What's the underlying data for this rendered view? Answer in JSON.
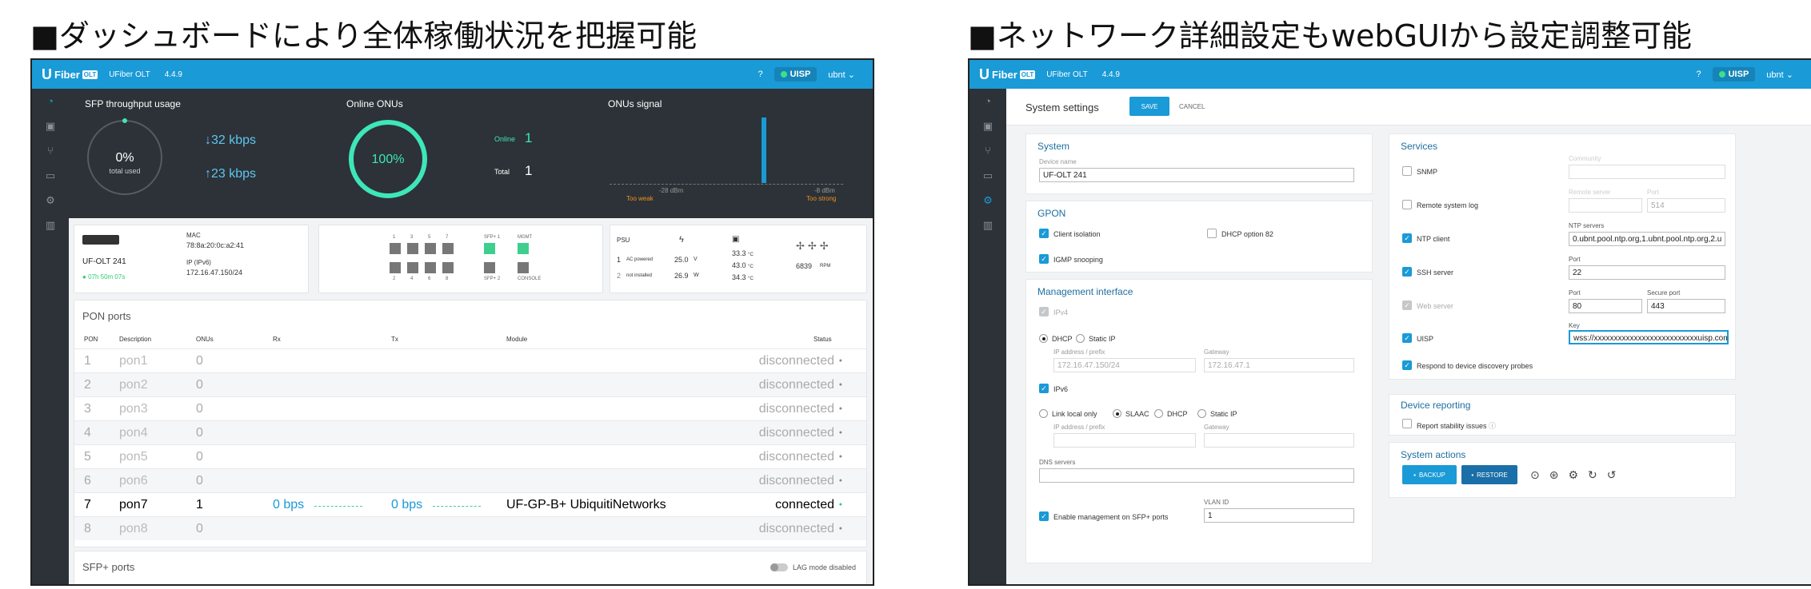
{
  "headings": {
    "left": "■ダッシュボードにより全体稼働状況を把握可能",
    "right": "■ネットワーク詳細設定もwebGUIから設定調整可能"
  },
  "topbar": {
    "brand": "Fiber",
    "brand_badge": "OLT",
    "product": "UFiber OLT",
    "version": "4.4.9",
    "help": "?",
    "uisp": "UISP",
    "user": "ubnt"
  },
  "dashboard": {
    "sfp_title": "SFP throughput usage",
    "sfp_percent": "0%",
    "sfp_percent_label": "total used",
    "down_rate": "↓32 kbps",
    "up_rate": "↑23 kbps",
    "onus_title": "Online ONUs",
    "onus_percent": "100%",
    "online_label": "Online",
    "online_value": "1",
    "total_label": "Total",
    "total_value": "1",
    "signal_title": "ONUs signal",
    "signal_low_db": "-28 dBm",
    "signal_low_label": "Too weak",
    "signal_high_db": "-8 dBm",
    "signal_high_label": "Too strong",
    "signal_fill": 0.35
  },
  "device": {
    "name": "UF-OLT 241",
    "uptime": "07h 50m 07s",
    "mac_label": "MAC",
    "mac": "78:8a:20:0c:a2:41",
    "ip_label": "IP (IPv6)",
    "ip": "172.16.47.150/24",
    "ports_top": [
      "1",
      "3",
      "5",
      "7",
      "SFP+ 1",
      "MGMT"
    ],
    "ports_bottom": [
      "2",
      "4",
      "6",
      "8",
      "SFP+ 2",
      "CONSOLE"
    ],
    "psu_label": "PSU",
    "psu1_no": "1",
    "psu1_state": "AC powered",
    "psu1_volt": "25.0",
    "psu1_watt_unit": "V",
    "psu2_no": "2",
    "psu2_state": "not installed",
    "psu2_watt": "26.9",
    "psu2_unit": "W",
    "temps": [
      "33.3",
      "43.0",
      "34.3"
    ],
    "temp_unit": "°C",
    "fan_rpm": "6839",
    "fan_unit": "RPM"
  },
  "pon": {
    "title": "PON ports",
    "headers": [
      "PON",
      "Description",
      "ONUs",
      "Rx",
      "Tx",
      "Module",
      "Status"
    ],
    "rows": [
      {
        "pon": "1",
        "desc": "pon1",
        "onus": "0",
        "rx": "",
        "tx": "",
        "module": "",
        "status": "disconnected"
      },
      {
        "pon": "2",
        "desc": "pon2",
        "onus": "0",
        "rx": "",
        "tx": "",
        "module": "",
        "status": "disconnected"
      },
      {
        "pon": "3",
        "desc": "pon3",
        "onus": "0",
        "rx": "",
        "tx": "",
        "module": "",
        "status": "disconnected"
      },
      {
        "pon": "4",
        "desc": "pon4",
        "onus": "0",
        "rx": "",
        "tx": "",
        "module": "",
        "status": "disconnected"
      },
      {
        "pon": "5",
        "desc": "pon5",
        "onus": "0",
        "rx": "",
        "tx": "",
        "module": "",
        "status": "disconnected"
      },
      {
        "pon": "6",
        "desc": "pon6",
        "onus": "0",
        "rx": "",
        "tx": "",
        "module": "",
        "status": "disconnected"
      },
      {
        "pon": "7",
        "desc": "pon7",
        "onus": "1",
        "rx": "0 bps",
        "tx": "0 bps",
        "module": "UF-GP-B+ UbiquitiNetworks",
        "status": "connected"
      },
      {
        "pon": "8",
        "desc": "pon8",
        "onus": "0",
        "rx": "",
        "tx": "",
        "module": "",
        "status": "disconnected"
      }
    ],
    "sfp_title": "SFP+ ports",
    "lag_label": "LAG mode disabled"
  },
  "settings": {
    "title": "System settings",
    "save": "SAVE",
    "cancel": "CANCEL",
    "system": {
      "title": "System",
      "device_name_label": "Device name",
      "device_name": "UF-OLT 241"
    },
    "gpon": {
      "title": "GPON",
      "client_isolation": "Client isolation",
      "dhcp82": "DHCP option 82",
      "igmp": "IGMP snooping"
    },
    "mgmt": {
      "title": "Management interface",
      "ipv4": "IPv4",
      "dhcp": "DHCP",
      "static": "Static IP",
      "ip_prefix_label": "IP address / prefix",
      "ip_prefix": "172.16.47.150/24",
      "gateway_label": "Gateway",
      "gateway": "172.16.47.1",
      "ipv6": "IPv6",
      "link_local": "Link local only",
      "slaac": "SLAAC",
      "dhcp6": "DHCP",
      "static6": "Static IP",
      "ip6_label": "IP address / prefix",
      "gw6_label": "Gateway",
      "dns_label": "DNS servers",
      "vlan_label": "VLAN ID",
      "vlan": "1",
      "sfp_mgmt": "Enable management on SFP+ ports"
    },
    "services": {
      "title": "Services",
      "snmp": "SNMP",
      "community_label": "Community",
      "remote_log": "Remote system log",
      "remote_server_label": "Remote server",
      "port_label": "Port",
      "remote_port": "514",
      "ntp": "NTP client",
      "ntp_servers_label": "NTP servers",
      "ntp_servers": "0.ubnt.pool.ntp.org,1.ubnt.pool.ntp.org,2.u",
      "ssh": "SSH server",
      "ssh_port_label": "Port",
      "ssh_port": "22",
      "web": "Web server",
      "web_port_label": "Port",
      "web_port": "80",
      "secure_port_label": "Secure port",
      "secure_port": "443",
      "uisp": "UISP",
      "key_label": "Key",
      "key": "wss://xxxxxxxxxxxxxxxxxxxxxxxxxxuisp.com:",
      "discovery": "Respond to device discovery probes"
    },
    "reporting": {
      "title": "Device reporting",
      "stability": "Report stability issues"
    },
    "actions": {
      "title": "System actions",
      "backup": "BACKUP",
      "restore": "RESTORE"
    }
  },
  "colors": {
    "accent": "#1a9ad6",
    "dark": "#2c3237",
    "teal": "#3ee6b8",
    "green": "#2ecc71"
  }
}
